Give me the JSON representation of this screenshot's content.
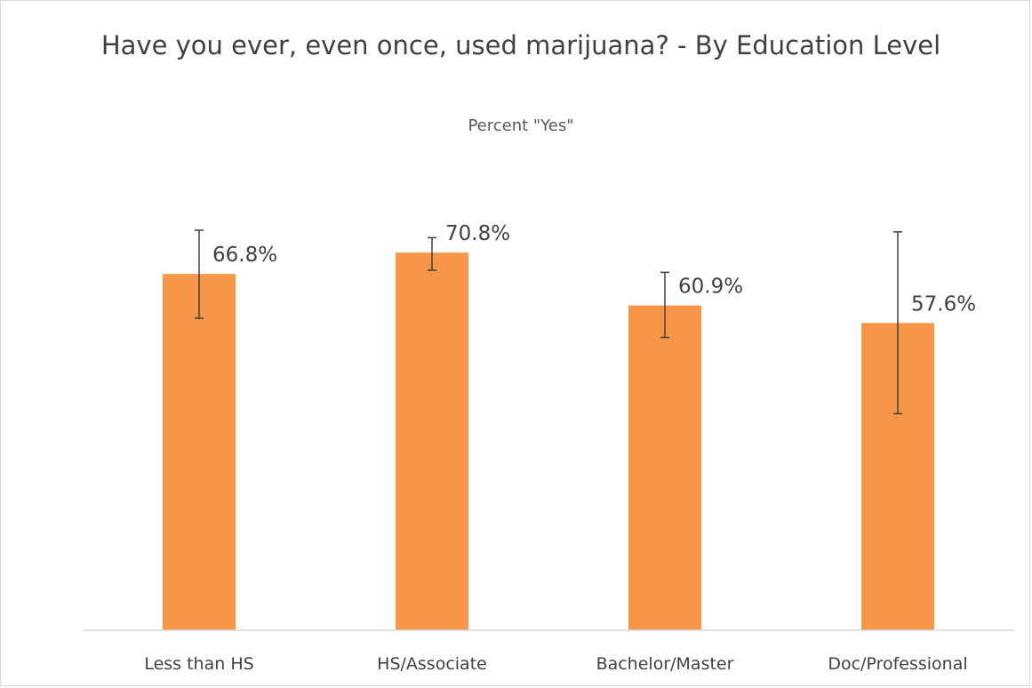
{
  "chart_data": {
    "type": "bar",
    "title": "Have you ever, even once, used marijuana? - By Education Level",
    "subtitle": "Percent \"Yes\"",
    "categories": [
      "Less than HS",
      "HS/Associate",
      "Bachelor/Master",
      "Doc/Professional"
    ],
    "values": [
      66.8,
      70.8,
      60.9,
      57.6
    ],
    "value_labels": [
      "66.8%",
      "70.8%",
      "60.9%",
      "57.6%"
    ],
    "error_low": [
      58.5,
      67.5,
      54.9,
      40.6
    ],
    "error_high": [
      75.0,
      73.6,
      67.1,
      74.7
    ],
    "ylim": [
      0,
      75
    ],
    "grid": false,
    "legend": "none",
    "xlabel": "",
    "ylabel": "",
    "colors": {
      "bar": "#F79646",
      "error_bar": "#404040",
      "axis": "#d9d9d9",
      "text": "#404040"
    }
  }
}
